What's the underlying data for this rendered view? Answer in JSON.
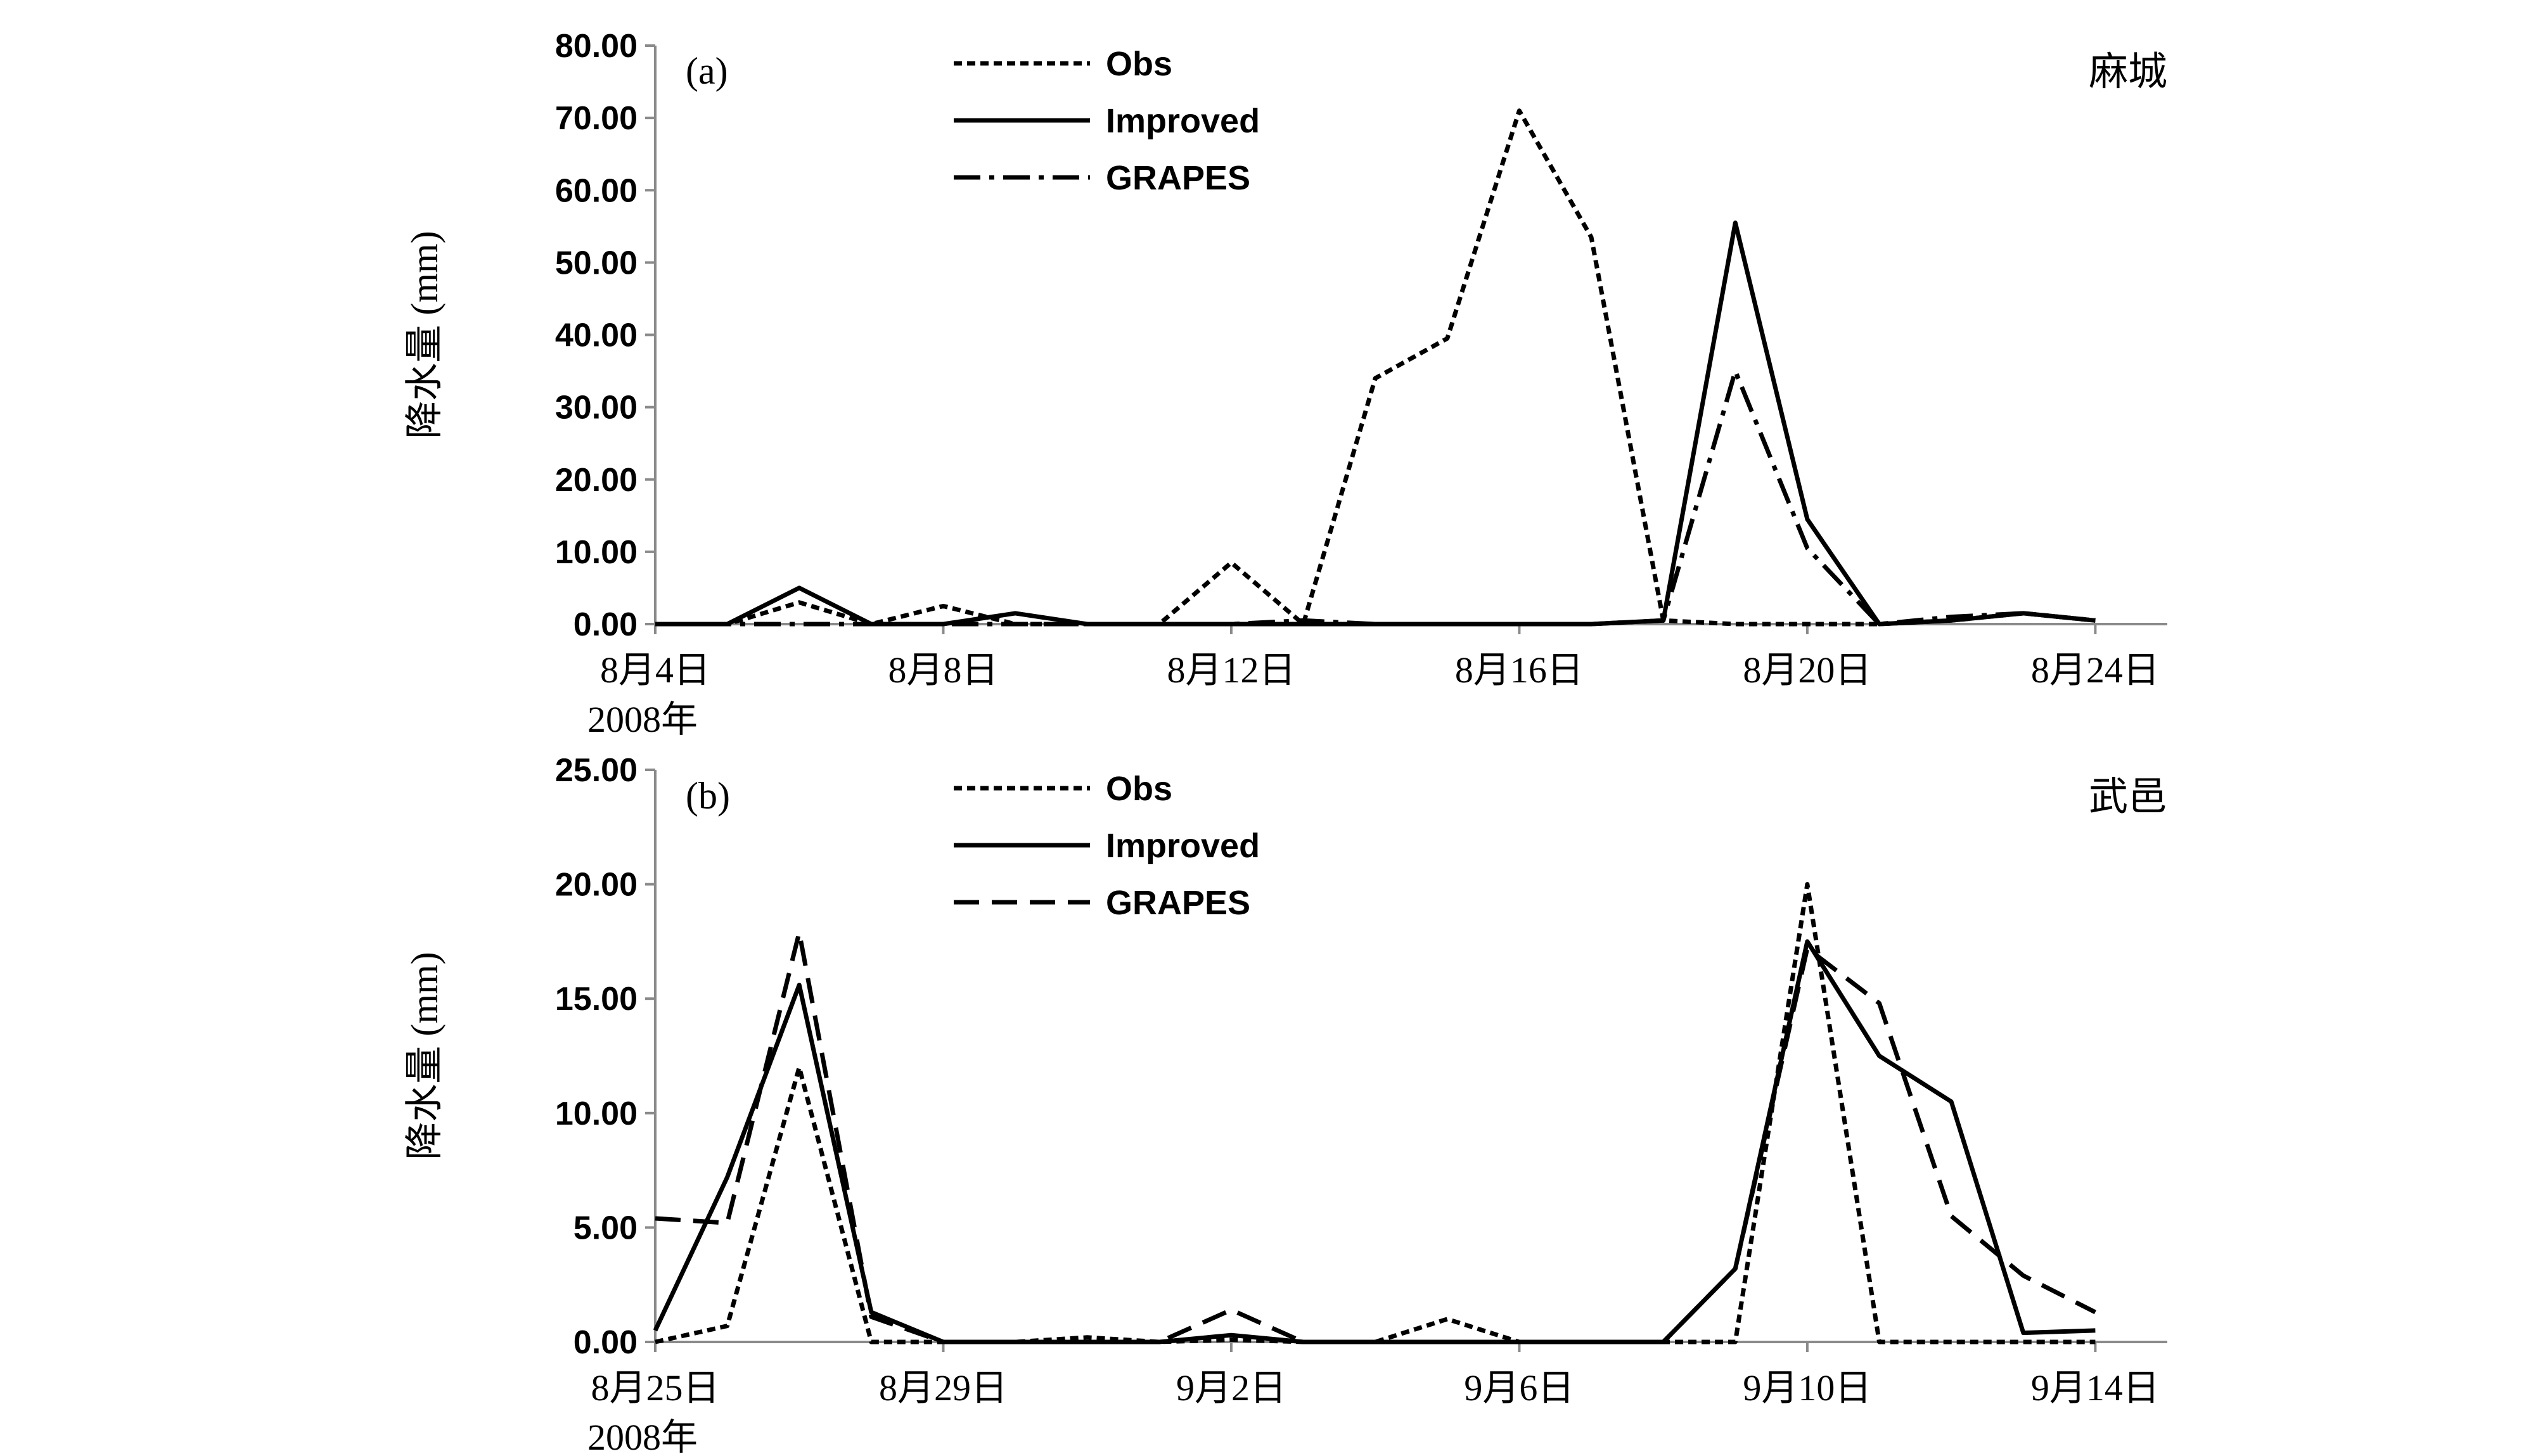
{
  "chart_data": [
    {
      "type": "line",
      "panel_label": "(a)",
      "station": "麻城",
      "ylabel": "降水量 (mm)",
      "ylim": [
        0,
        80
      ],
      "yticks": [
        "0.00",
        "10.00",
        "20.00",
        "30.00",
        "40.00",
        "50.00",
        "60.00",
        "70.00",
        "80.00"
      ],
      "xlim": [
        "2008-08-04",
        "2008-08-25"
      ],
      "xticks": [
        {
          "date": "2008-08-04",
          "label": "8月4日"
        },
        {
          "date": "2008-08-08",
          "label": "8月8日"
        },
        {
          "date": "2008-08-12",
          "label": "8月12日"
        },
        {
          "date": "2008-08-16",
          "label": "8月16日"
        },
        {
          "date": "2008-08-20",
          "label": "8月20日"
        },
        {
          "date": "2008-08-24",
          "label": "8月24日"
        }
      ],
      "year_label": "2008年",
      "legend_position": "top-center",
      "x": [
        "2008-08-04",
        "2008-08-05",
        "2008-08-06",
        "2008-08-07",
        "2008-08-08",
        "2008-08-09",
        "2008-08-10",
        "2008-08-11",
        "2008-08-12",
        "2008-08-13",
        "2008-08-14",
        "2008-08-15",
        "2008-08-16",
        "2008-08-17",
        "2008-08-18",
        "2008-08-19",
        "2008-08-20",
        "2008-08-21",
        "2008-08-22",
        "2008-08-23",
        "2008-08-24"
      ],
      "series": [
        {
          "name": "Obs",
          "style": "dotted",
          "values": [
            0,
            0,
            3,
            0,
            2.5,
            0,
            0,
            0,
            8.5,
            0,
            34,
            39.5,
            71,
            53.5,
            0.5,
            0,
            0,
            0,
            0.5,
            1.5,
            0.5
          ]
        },
        {
          "name": "Improved",
          "style": "solid",
          "values": [
            0,
            0,
            5,
            0,
            0,
            1.5,
            0,
            0,
            0,
            0,
            0,
            0,
            0,
            0,
            0.5,
            55.5,
            14.5,
            0,
            0.5,
            1.5,
            0.5
          ]
        },
        {
          "name": "GRAPES",
          "style": "dashdot",
          "values": [
            0,
            0,
            0,
            0,
            0,
            0,
            0,
            0,
            0,
            0.5,
            0,
            0,
            0,
            0,
            0.5,
            35,
            10.5,
            0,
            1,
            1.5,
            0.5
          ]
        }
      ]
    },
    {
      "type": "line",
      "panel_label": "(b)",
      "station": "武邑",
      "ylabel": "降水量 (mm)",
      "ylim": [
        0,
        25
      ],
      "yticks": [
        "0.00",
        "5.00",
        "10.00",
        "15.00",
        "20.00",
        "25.00"
      ],
      "xlim": [
        "2008-08-25",
        "2008-09-15"
      ],
      "xticks": [
        {
          "date": "2008-08-25",
          "label": "8月25日"
        },
        {
          "date": "2008-08-29",
          "label": "8月29日"
        },
        {
          "date": "2008-09-02",
          "label": "9月2日"
        },
        {
          "date": "2008-09-06",
          "label": "9月6日"
        },
        {
          "date": "2008-09-10",
          "label": "9月10日"
        },
        {
          "date": "2008-09-14",
          "label": "9月14日"
        }
      ],
      "year_label": "2008年",
      "legend_position": "top-center",
      "x": [
        "2008-08-25",
        "2008-08-26",
        "2008-08-27",
        "2008-08-28",
        "2008-08-29",
        "2008-08-30",
        "2008-08-31",
        "2008-09-01",
        "2008-09-02",
        "2008-09-03",
        "2008-09-04",
        "2008-09-05",
        "2008-09-06",
        "2008-09-07",
        "2008-09-08",
        "2008-09-09",
        "2008-09-10",
        "2008-09-11",
        "2008-09-12",
        "2008-09-13",
        "2008-09-14"
      ],
      "series": [
        {
          "name": "Obs",
          "style": "dotted",
          "values": [
            0,
            0.7,
            12,
            0,
            0,
            0,
            0.2,
            0,
            0.1,
            0,
            0,
            1,
            0,
            0,
            0,
            0,
            20,
            0,
            0,
            0,
            0
          ]
        },
        {
          "name": "Improved",
          "style": "solid",
          "values": [
            0.5,
            7.2,
            15.6,
            1.3,
            0,
            0,
            0,
            0,
            0.3,
            0,
            0,
            0,
            0,
            0,
            0,
            3.2,
            17.5,
            12.5,
            10.5,
            0.4,
            0.5
          ]
        },
        {
          "name": "GRAPES",
          "style": "longdash",
          "values": [
            5.4,
            5.2,
            17.9,
            1.1,
            0,
            0,
            0,
            0,
            1.4,
            0,
            0,
            0,
            0,
            0,
            0,
            3.2,
            17.2,
            14.8,
            5.5,
            2.9,
            1.3
          ]
        }
      ]
    }
  ]
}
